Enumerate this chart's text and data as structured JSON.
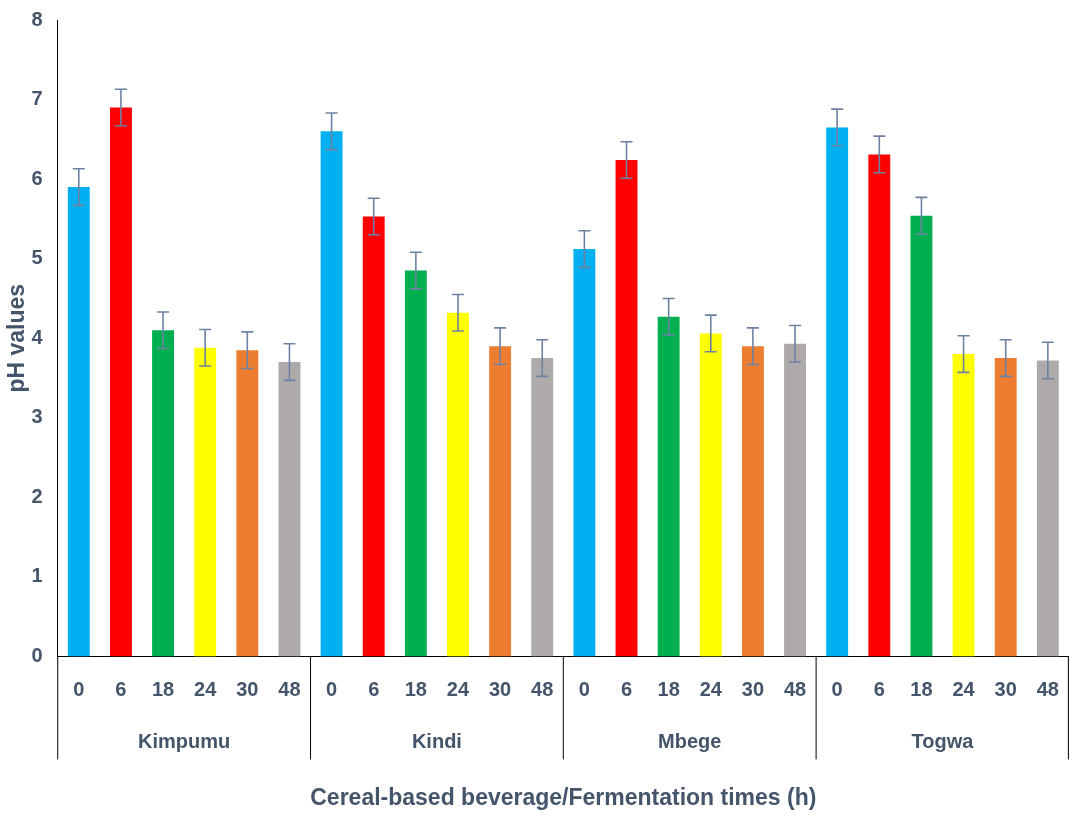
{
  "chart_data": {
    "type": "bar",
    "xlabel": "Cereal-based beverage/Fermentation times (h)",
    "ylabel": "pH values",
    "categories": [
      "0",
      "6",
      "18",
      "24",
      "30",
      "48",
      "0",
      "6",
      "18",
      "24",
      "30",
      "48",
      "0",
      "6",
      "18",
      "24",
      "30",
      "48",
      "0",
      "6",
      "18",
      "24",
      "30",
      "48"
    ],
    "values": [
      5.9,
      6.9,
      4.1,
      3.88,
      3.85,
      3.7,
      6.6,
      5.53,
      4.85,
      4.32,
      3.9,
      3.75,
      5.12,
      6.24,
      4.27,
      4.06,
      3.9,
      3.93,
      6.65,
      6.31,
      5.54,
      3.8,
      3.75,
      3.72
    ],
    "errors": [
      0.23,
      0.23,
      0.23,
      0.23,
      0.23,
      0.23,
      0.23,
      0.23,
      0.23,
      0.23,
      0.23,
      0.23,
      0.23,
      0.23,
      0.23,
      0.23,
      0.23,
      0.23,
      0.23,
      0.23,
      0.23,
      0.23,
      0.23,
      0.23
    ],
    "colors": [
      "#00b0f0",
      "#ff0000",
      "#00b050",
      "#ffff00",
      "#ed7d31",
      "#aeaaaa",
      "#00b0f0",
      "#ff0000",
      "#00b050",
      "#ffff00",
      "#ed7d31",
      "#aeaaaa",
      "#00b0f0",
      "#ff0000",
      "#00b050",
      "#ffff00",
      "#ed7d31",
      "#aeaaaa",
      "#00b0f0",
      "#ff0000",
      "#00b050",
      "#ffff00",
      "#ed7d31",
      "#aeaaaa"
    ],
    "annotations": [
      "Kimpumu",
      "Kindi",
      "Mbege",
      "Togwa"
    ],
    "ylim": [
      0,
      8
    ],
    "yticks": [
      0,
      1,
      2,
      3,
      4,
      5,
      6,
      7,
      8
    ],
    "grid": false,
    "legend": false
  }
}
